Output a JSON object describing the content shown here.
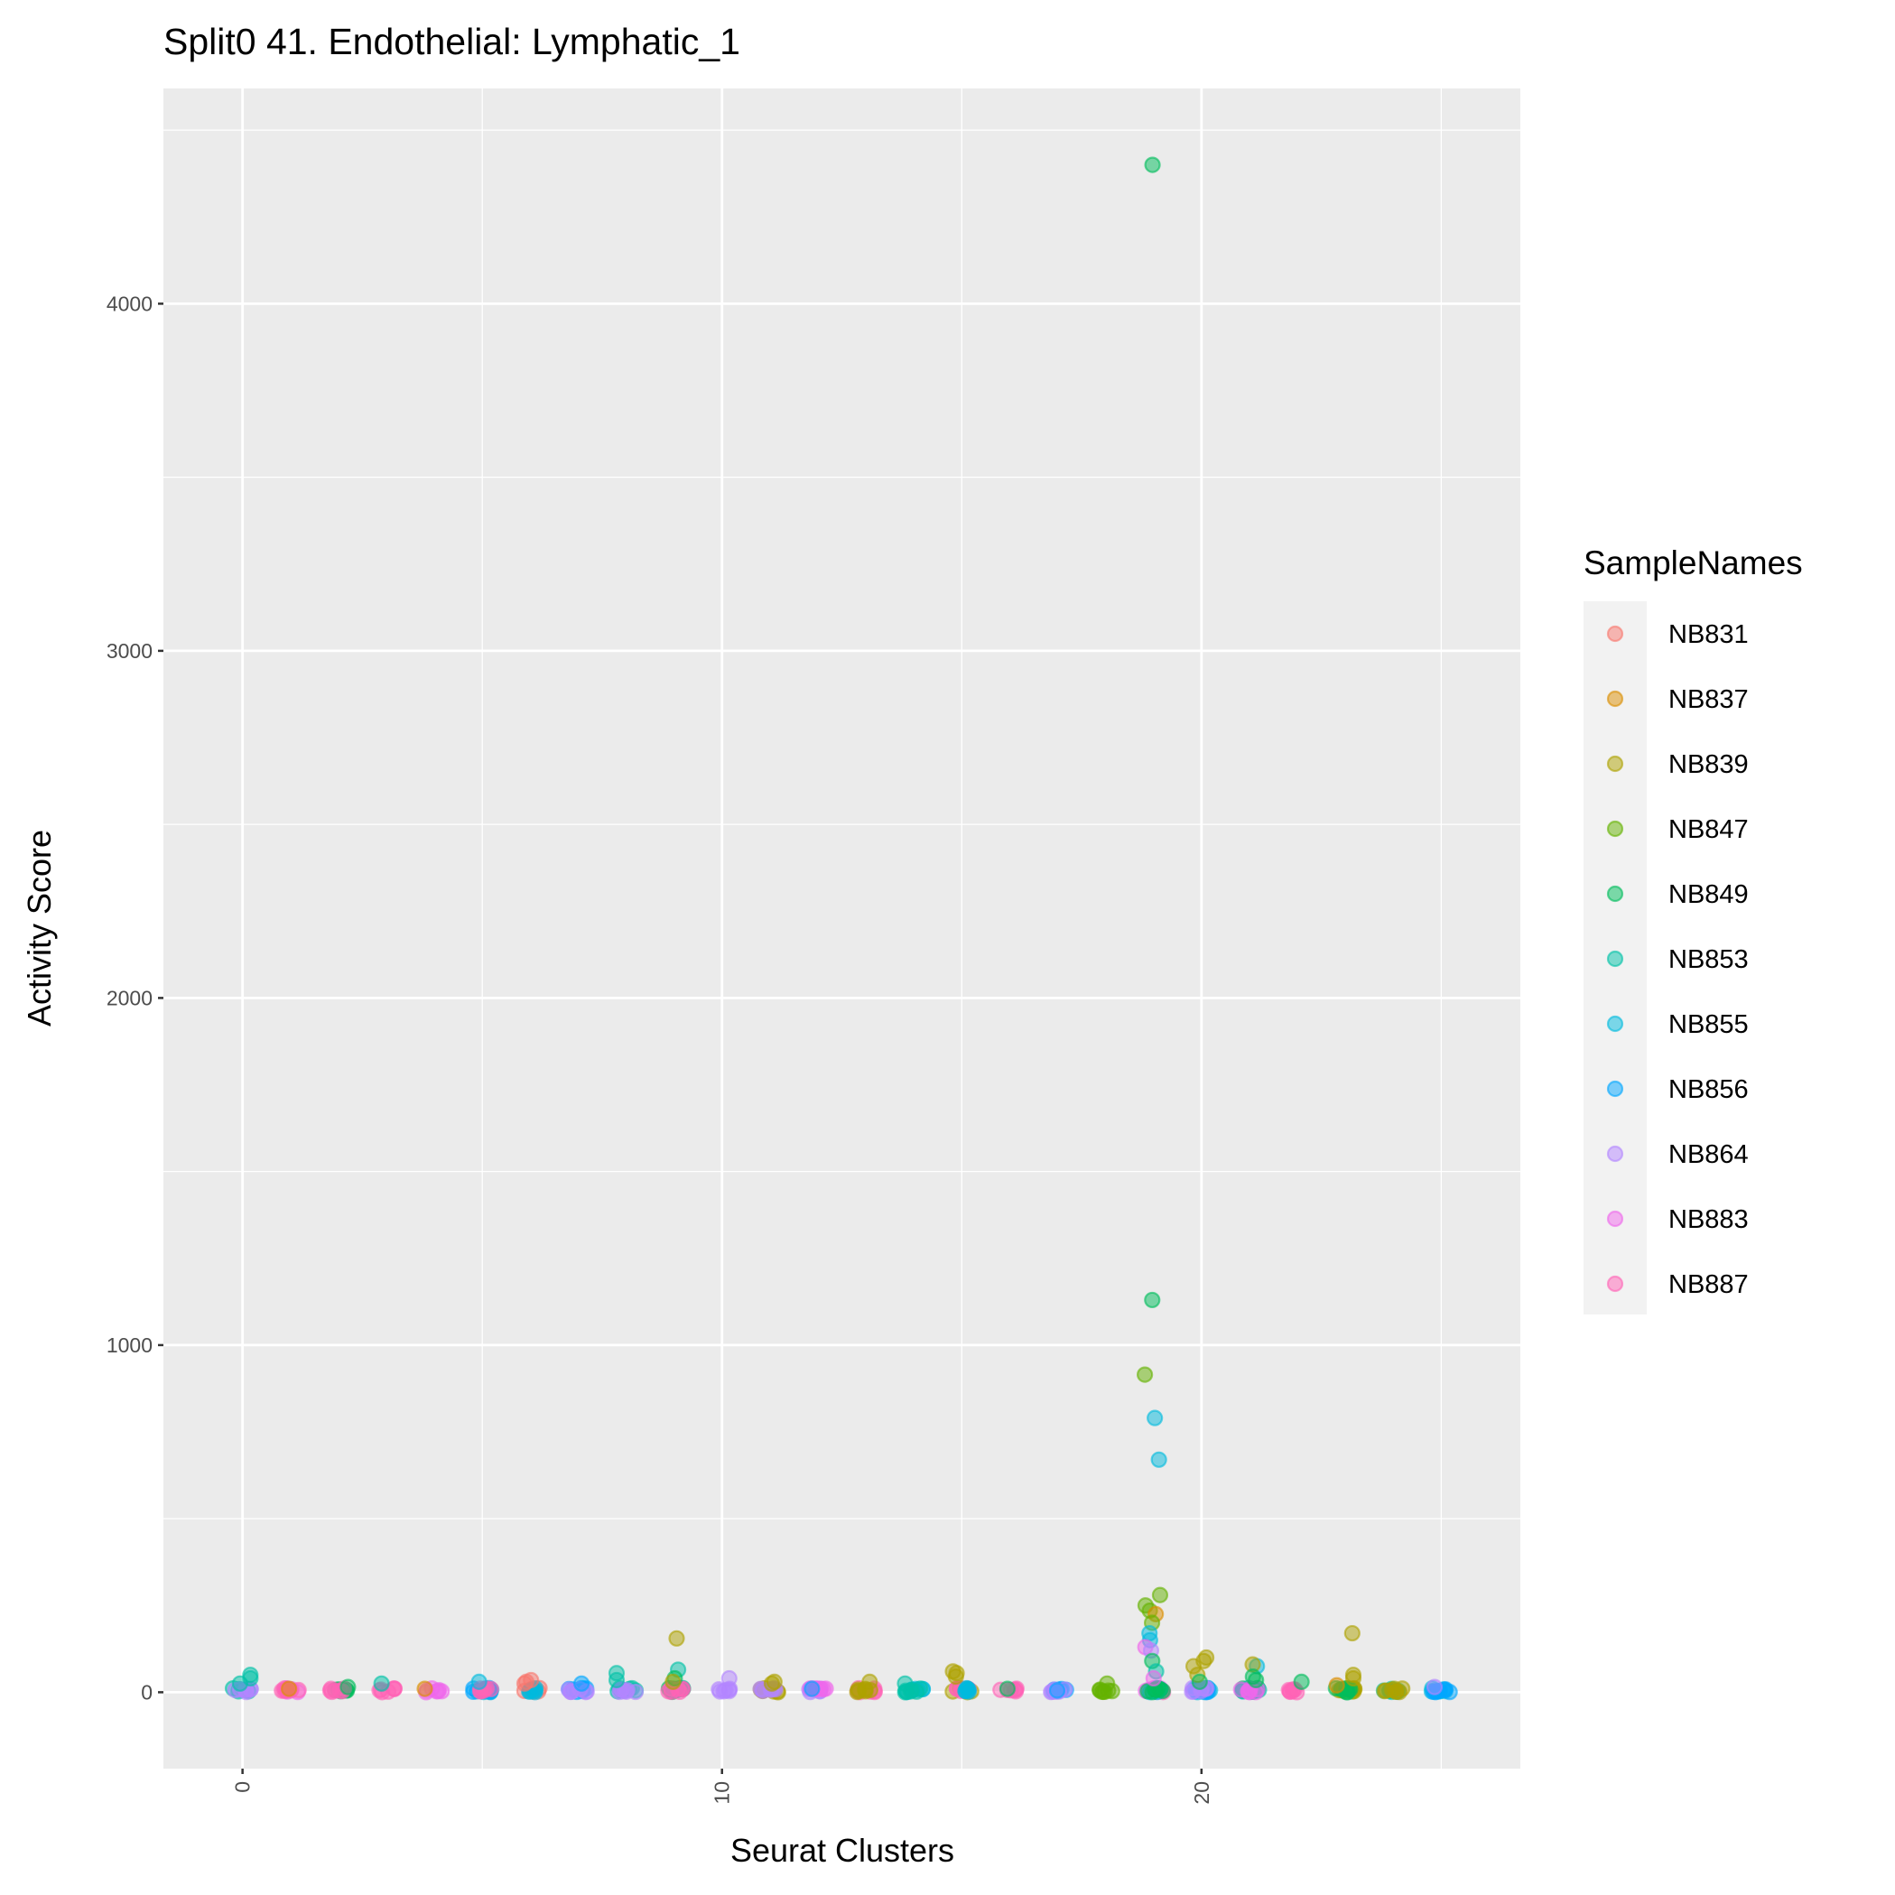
{
  "chart_data": {
    "type": "scatter",
    "title": "Split0 41. Endothelial: Lymphatic_1",
    "xlabel": "Seurat Clusters",
    "ylabel": "Activity Score",
    "xlim": [
      -1.65,
      26.65
    ],
    "ylim": [
      -220,
      4620
    ],
    "x_ticks": [
      0,
      10,
      20
    ],
    "y_ticks": [
      0,
      1000,
      2000,
      3000,
      4000
    ],
    "grid": true,
    "legend": {
      "title": "SampleNames",
      "position": "right",
      "entries": [
        "NB831",
        "NB837",
        "NB839",
        "NB847",
        "NB849",
        "NB853",
        "NB855",
        "NB856",
        "NB864",
        "NB883",
        "NB887"
      ],
      "colors": [
        "#F8766D",
        "#DB8E00",
        "#AEA200",
        "#64B200",
        "#00BD5C",
        "#00C1A7",
        "#00BADE",
        "#00A6FF",
        "#B385FF",
        "#EF67EB",
        "#FF63B6"
      ]
    },
    "clusters": [
      {
        "cluster": 0,
        "bulk": [
          5,
          8
        ],
        "points": [
          [
            5,
            40
          ],
          [
            5,
            50
          ],
          [
            5,
            25
          ]
        ]
      },
      {
        "cluster": 1,
        "bulk": [
          9,
          10
        ],
        "points": [
          [
            1,
            10
          ]
        ]
      },
      {
        "cluster": 2,
        "bulk": [
          4,
          10
        ],
        "points": [
          [
            4,
            15
          ]
        ]
      },
      {
        "cluster": 3,
        "bulk": [
          10
        ],
        "points": [
          [
            5,
            25
          ]
        ]
      },
      {
        "cluster": 4,
        "bulk": [
          9
        ],
        "points": [
          [
            1,
            10
          ]
        ]
      },
      {
        "cluster": 5,
        "bulk": [
          6,
          7,
          10
        ],
        "points": [
          [
            6,
            30
          ]
        ]
      },
      {
        "cluster": 6,
        "bulk": [
          0,
          6
        ],
        "points": [
          [
            0,
            30
          ],
          [
            0,
            35
          ],
          [
            0,
            25
          ]
        ]
      },
      {
        "cluster": 7,
        "bulk": [
          7,
          8
        ],
        "points": [
          [
            7,
            25
          ]
        ]
      },
      {
        "cluster": 8,
        "bulk": [
          5,
          8
        ],
        "points": [
          [
            5,
            55
          ],
          [
            5,
            35
          ]
        ]
      },
      {
        "cluster": 9,
        "bulk": [
          4,
          5,
          10
        ],
        "points": [
          [
            2,
            155
          ],
          [
            5,
            65
          ],
          [
            4,
            40
          ],
          [
            2,
            30
          ]
        ]
      },
      {
        "cluster": 10,
        "bulk": [
          8
        ],
        "points": [
          [
            8,
            40
          ]
        ]
      },
      {
        "cluster": 11,
        "bulk": [
          2,
          8
        ],
        "points": [
          [
            2,
            30
          ],
          [
            2,
            25
          ]
        ]
      },
      {
        "cluster": 12,
        "bulk": [
          8,
          9
        ],
        "points": [
          [
            7,
            10
          ]
        ]
      },
      {
        "cluster": 13,
        "bulk": [
          10,
          2
        ],
        "points": [
          [
            2,
            30
          ]
        ]
      },
      {
        "cluster": 14,
        "bulk": [
          6,
          5
        ],
        "points": [
          [
            5,
            25
          ]
        ]
      },
      {
        "cluster": 15,
        "bulk": [
          2,
          10,
          6
        ],
        "points": [
          [
            2,
            60
          ],
          [
            2,
            55
          ],
          [
            2,
            45
          ]
        ]
      },
      {
        "cluster": 16,
        "bulk": [
          10
        ],
        "points": [
          [
            4,
            10
          ]
        ]
      },
      {
        "cluster": 17,
        "bulk": [
          7,
          8
        ],
        "points": [
          [
            7,
            5
          ]
        ]
      },
      {
        "cluster": 18,
        "bulk": [
          3
        ],
        "points": [
          [
            3,
            25
          ]
        ]
      },
      {
        "cluster": 19,
        "bulk": [
          10,
          9,
          6,
          4
        ],
        "points": [
          [
            4,
            4400
          ],
          [
            4,
            1130
          ],
          [
            3,
            915
          ],
          [
            6,
            790
          ],
          [
            6,
            670
          ],
          [
            3,
            280
          ],
          [
            3,
            250
          ],
          [
            3,
            235
          ],
          [
            1,
            225
          ],
          [
            3,
            200
          ],
          [
            6,
            150
          ],
          [
            6,
            170
          ],
          [
            9,
            130
          ],
          [
            8,
            120
          ],
          [
            4,
            90
          ],
          [
            5,
            60
          ],
          [
            9,
            40
          ]
        ]
      },
      {
        "cluster": 20,
        "bulk": [
          6,
          7,
          8
        ],
        "points": [
          [
            2,
            90
          ],
          [
            2,
            100
          ],
          [
            2,
            75
          ],
          [
            2,
            50
          ],
          [
            4,
            30
          ]
        ]
      },
      {
        "cluster": 21,
        "bulk": [
          4,
          5,
          9
        ],
        "points": [
          [
            6,
            75
          ],
          [
            2,
            80
          ],
          [
            4,
            45
          ],
          [
            4,
            35
          ]
        ]
      },
      {
        "cluster": 22,
        "bulk": [
          10
        ],
        "points": [
          [
            4,
            30
          ]
        ]
      },
      {
        "cluster": 23,
        "bulk": [
          3,
          2,
          4
        ],
        "points": [
          [
            2,
            170
          ],
          [
            2,
            50
          ],
          [
            2,
            40
          ],
          [
            1,
            20
          ]
        ]
      },
      {
        "cluster": 24,
        "bulk": [
          5,
          2
        ],
        "points": [
          [
            2,
            10
          ]
        ]
      },
      {
        "cluster": 25,
        "bulk": [
          6,
          7
        ],
        "points": [
          [
            8,
            15
          ]
        ]
      }
    ]
  }
}
